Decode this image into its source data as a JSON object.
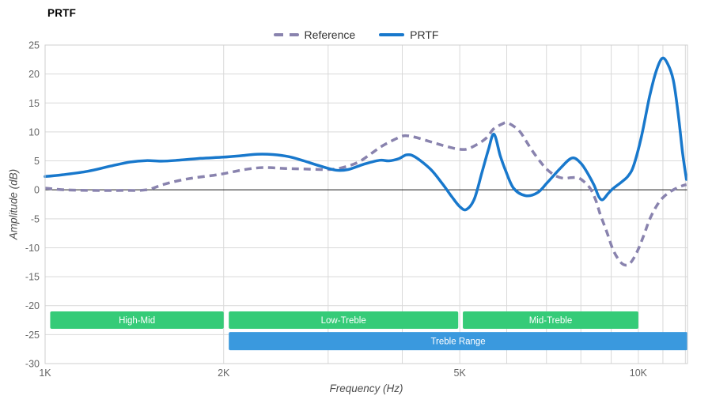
{
  "title": "PRTF",
  "colors": {
    "prtf": "#1878cc",
    "reference": "#8983ae",
    "band_green": "#35cb78",
    "band_blue": "#3a99de",
    "band_label": "#ffffff",
    "grid": "#d9d9d9",
    "border": "#cfcfcf",
    "zero_line": "#1a1a1a",
    "tick_text": "#666666",
    "axis_title_text": "#4d4d4d",
    "title_text": "#000000",
    "legend_text": "#333333"
  },
  "chart_data": {
    "type": "line",
    "title": "PRTF",
    "xlabel": "Frequency (Hz)",
    "ylabel": "Amplitude (dB)",
    "x_scale": "log",
    "x_unit": "kHz",
    "xlim": [
      1,
      12.1
    ],
    "ylim": [
      -30,
      25
    ],
    "grid": true,
    "legend_position": "top-center",
    "x_ticks": [
      {
        "khz": 1,
        "label": "1K"
      },
      {
        "khz": 2,
        "label": "2K"
      },
      {
        "khz": 5,
        "label": "5K"
      },
      {
        "khz": 10,
        "label": "10K"
      }
    ],
    "x_gridlines_khz": [
      2,
      3,
      4,
      5,
      6,
      7,
      8,
      9,
      10,
      11,
      12
    ],
    "y_ticks": [
      {
        "value": 25,
        "label": "25"
      },
      {
        "value": 20,
        "label": "20"
      },
      {
        "value": 15,
        "label": "15"
      },
      {
        "value": 10,
        "label": "10"
      },
      {
        "value": 5,
        "label": "5"
      },
      {
        "value": 0,
        "label": "0"
      },
      {
        "value": -5,
        "label": "-5"
      },
      {
        "value": -10,
        "label": "-10"
      },
      {
        "value": -15,
        "label": "-15"
      },
      {
        "value": -20,
        "label": "-20"
      },
      {
        "value": -25,
        "label": "-25"
      },
      {
        "value": -30,
        "label": "-30"
      }
    ],
    "series": [
      {
        "name": "Reference",
        "style": "dashed",
        "color_key": "reference",
        "points": [
          [
            1.0,
            0.3
          ],
          [
            1.08,
            0.0
          ],
          [
            1.2,
            -0.1
          ],
          [
            1.35,
            -0.1
          ],
          [
            1.48,
            0.0
          ],
          [
            1.58,
            0.9
          ],
          [
            1.68,
            1.6
          ],
          [
            1.79,
            2.1
          ],
          [
            1.95,
            2.6
          ],
          [
            2.07,
            3.1
          ],
          [
            2.2,
            3.6
          ],
          [
            2.34,
            3.85
          ],
          [
            2.53,
            3.7
          ],
          [
            2.73,
            3.6
          ],
          [
            2.95,
            3.5
          ],
          [
            3.09,
            3.6
          ],
          [
            3.24,
            4.1
          ],
          [
            3.39,
            4.9
          ],
          [
            3.55,
            6.3
          ],
          [
            3.69,
            7.5
          ],
          [
            3.83,
            8.4
          ],
          [
            3.98,
            9.2
          ],
          [
            4.07,
            9.35
          ],
          [
            4.2,
            9.1
          ],
          [
            4.4,
            8.5
          ],
          [
            4.6,
            7.9
          ],
          [
            4.83,
            7.3
          ],
          [
            5.0,
            7.0
          ],
          [
            5.15,
            7.05
          ],
          [
            5.36,
            7.9
          ],
          [
            5.55,
            9.0
          ],
          [
            5.7,
            10.5
          ],
          [
            5.9,
            11.4
          ],
          [
            6.0,
            11.6
          ],
          [
            6.16,
            11.0
          ],
          [
            6.32,
            10.0
          ],
          [
            6.47,
            8.4
          ],
          [
            6.63,
            6.7
          ],
          [
            6.83,
            4.9
          ],
          [
            7.0,
            3.6
          ],
          [
            7.23,
            2.5
          ],
          [
            7.47,
            2.0
          ],
          [
            7.7,
            2.1
          ],
          [
            7.9,
            2.1
          ],
          [
            8.08,
            1.5
          ],
          [
            8.3,
            0.2
          ],
          [
            8.47,
            -1.7
          ],
          [
            8.63,
            -4.3
          ],
          [
            8.85,
            -7.3
          ],
          [
            9.06,
            -10.3
          ],
          [
            9.3,
            -12.3
          ],
          [
            9.5,
            -13.0
          ],
          [
            9.7,
            -12.6
          ],
          [
            9.95,
            -10.7
          ],
          [
            10.2,
            -8.0
          ],
          [
            10.44,
            -5.2
          ],
          [
            10.7,
            -3.0
          ],
          [
            10.96,
            -1.5
          ],
          [
            11.25,
            -0.5
          ],
          [
            11.6,
            0.3
          ],
          [
            11.85,
            0.7
          ],
          [
            12.05,
            0.9
          ]
        ]
      },
      {
        "name": "PRTF",
        "style": "solid",
        "color_key": "prtf",
        "points": [
          [
            1.0,
            2.3
          ],
          [
            1.07,
            2.6
          ],
          [
            1.18,
            3.2
          ],
          [
            1.29,
            4.1
          ],
          [
            1.39,
            4.8
          ],
          [
            1.48,
            5.05
          ],
          [
            1.57,
            4.95
          ],
          [
            1.67,
            5.1
          ],
          [
            1.81,
            5.4
          ],
          [
            2.0,
            5.65
          ],
          [
            2.14,
            5.9
          ],
          [
            2.28,
            6.15
          ],
          [
            2.42,
            6.1
          ],
          [
            2.57,
            5.75
          ],
          [
            2.73,
            5.0
          ],
          [
            2.91,
            4.1
          ],
          [
            3.09,
            3.4
          ],
          [
            3.24,
            3.5
          ],
          [
            3.44,
            4.4
          ],
          [
            3.66,
            5.1
          ],
          [
            3.8,
            5.0
          ],
          [
            3.95,
            5.4
          ],
          [
            4.07,
            6.05
          ],
          [
            4.2,
            5.7
          ],
          [
            4.46,
            3.6
          ],
          [
            4.67,
            1.1
          ],
          [
            4.85,
            -1.2
          ],
          [
            5.0,
            -2.9
          ],
          [
            5.13,
            -3.4
          ],
          [
            5.29,
            -1.6
          ],
          [
            5.45,
            3.0
          ],
          [
            5.59,
            7.0
          ],
          [
            5.71,
            9.6
          ],
          [
            5.85,
            5.9
          ],
          [
            5.97,
            3.4
          ],
          [
            6.16,
            0.3
          ],
          [
            6.45,
            -1.0
          ],
          [
            6.76,
            -0.5
          ],
          [
            7.03,
            1.3
          ],
          [
            7.4,
            3.8
          ],
          [
            7.73,
            5.5
          ],
          [
            8.0,
            4.6
          ],
          [
            8.24,
            2.6
          ],
          [
            8.42,
            0.8
          ],
          [
            8.58,
            -1.2
          ],
          [
            8.71,
            -1.7
          ],
          [
            8.9,
            -0.6
          ],
          [
            9.06,
            0.2
          ],
          [
            9.38,
            1.4
          ],
          [
            9.61,
            2.4
          ],
          [
            9.82,
            4.2
          ],
          [
            10.12,
            9.2
          ],
          [
            10.44,
            16.0
          ],
          [
            10.7,
            20.3
          ],
          [
            10.96,
            22.7
          ],
          [
            11.2,
            21.8
          ],
          [
            11.45,
            19.0
          ],
          [
            11.66,
            13.5
          ],
          [
            11.87,
            6.5
          ],
          [
            12.05,
            1.8
          ]
        ]
      }
    ],
    "bands": [
      {
        "label": "High-Mid",
        "from_khz": 1.02,
        "to_khz": 2.0,
        "color_key": "band_green",
        "db_top": -21.0,
        "db_bottom": -24.0
      },
      {
        "label": "Low-Treble",
        "from_khz": 2.04,
        "to_khz": 4.97,
        "color_key": "band_green",
        "db_top": -21.0,
        "db_bottom": -24.0
      },
      {
        "label": "Mid-Treble",
        "from_khz": 5.06,
        "to_khz": 10.0,
        "color_key": "band_green",
        "db_top": -21.0,
        "db_bottom": -24.0
      },
      {
        "label": "Treble Range",
        "from_khz": 2.04,
        "to_khz": 12.1,
        "color_key": "band_blue",
        "db_top": -24.55,
        "db_bottom": -27.7
      }
    ]
  }
}
